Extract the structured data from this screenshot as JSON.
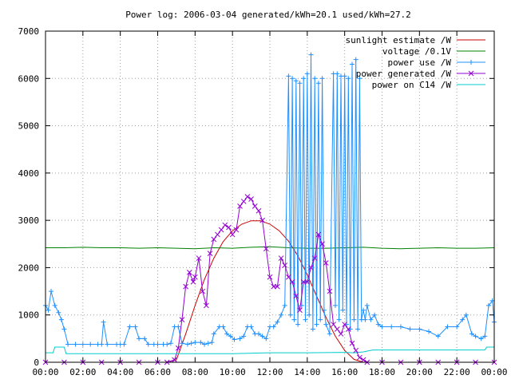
{
  "chart_data": {
    "type": "line",
    "title": "Power log: 2006-03-04 generated/kWh=20.1 used/kWh=27.2",
    "xlabel": "",
    "ylabel": "",
    "x_ticks": [
      "00:00",
      "02:00",
      "04:00",
      "06:00",
      "08:00",
      "10:00",
      "12:00",
      "14:00",
      "16:00",
      "18:00",
      "20:00",
      "22:00",
      "00:00"
    ],
    "x_unit": "hours",
    "xlim": [
      0,
      24
    ],
    "ylim": [
      0,
      7000
    ],
    "y_ticks": [
      0,
      1000,
      2000,
      3000,
      4000,
      5000,
      6000,
      7000
    ],
    "grid": true,
    "legend_position": "top-right",
    "series": [
      {
        "name": "sunlight estimate /W",
        "color": "#cc0000",
        "marker": "none",
        "points": [
          [
            6.5,
            0
          ],
          [
            7,
            50
          ],
          [
            7.5,
            600
          ],
          [
            8,
            1200
          ],
          [
            8.5,
            1750
          ],
          [
            9,
            2200
          ],
          [
            9.5,
            2550
          ],
          [
            10,
            2780
          ],
          [
            10.5,
            2920
          ],
          [
            11,
            2990
          ],
          [
            11.5,
            2990
          ],
          [
            12,
            2920
          ],
          [
            12.5,
            2780
          ],
          [
            13,
            2560
          ],
          [
            13.5,
            2250
          ],
          [
            14,
            1850
          ],
          [
            14.5,
            1400
          ],
          [
            15,
            950
          ],
          [
            15.5,
            550
          ],
          [
            16,
            250
          ],
          [
            16.5,
            60
          ],
          [
            17,
            0
          ]
        ]
      },
      {
        "name": "voltage /0.1V",
        "color": "#008000",
        "marker": "none",
        "points": [
          [
            0,
            2420
          ],
          [
            1,
            2420
          ],
          [
            2,
            2430
          ],
          [
            3,
            2420
          ],
          [
            4,
            2420
          ],
          [
            5,
            2410
          ],
          [
            6,
            2420
          ],
          [
            7,
            2410
          ],
          [
            8,
            2400
          ],
          [
            9,
            2420
          ],
          [
            10,
            2410
          ],
          [
            11,
            2430
          ],
          [
            12,
            2440
          ],
          [
            13,
            2420
          ],
          [
            14,
            2410
          ],
          [
            15,
            2410
          ],
          [
            16,
            2420
          ],
          [
            17,
            2430
          ],
          [
            18,
            2410
          ],
          [
            19,
            2400
          ],
          [
            20,
            2410
          ],
          [
            21,
            2420
          ],
          [
            22,
            2410
          ],
          [
            23,
            2410
          ],
          [
            24,
            2420
          ]
        ]
      },
      {
        "name": "power use /W",
        "color": "#1e90ff",
        "marker": "+",
        "points": [
          [
            0,
            1200
          ],
          [
            0.15,
            1100
          ],
          [
            0.3,
            1500
          ],
          [
            0.5,
            1200
          ],
          [
            0.7,
            1050
          ],
          [
            0.85,
            900
          ],
          [
            1,
            700
          ],
          [
            1.2,
            380
          ],
          [
            1.6,
            380
          ],
          [
            2,
            380
          ],
          [
            2.4,
            380
          ],
          [
            2.8,
            380
          ],
          [
            3,
            380
          ],
          [
            3.1,
            850
          ],
          [
            3.3,
            380
          ],
          [
            3.8,
            380
          ],
          [
            4,
            380
          ],
          [
            4.2,
            380
          ],
          [
            4.5,
            750
          ],
          [
            4.8,
            750
          ],
          [
            5,
            500
          ],
          [
            5.3,
            500
          ],
          [
            5.5,
            380
          ],
          [
            5.8,
            380
          ],
          [
            6,
            380
          ],
          [
            6.3,
            380
          ],
          [
            6.5,
            380
          ],
          [
            6.7,
            400
          ],
          [
            6.9,
            750
          ],
          [
            7.1,
            750
          ],
          [
            7.3,
            400
          ],
          [
            7.6,
            380
          ],
          [
            7.8,
            400
          ],
          [
            8,
            420
          ],
          [
            8.3,
            420
          ],
          [
            8.5,
            380
          ],
          [
            8.7,
            400
          ],
          [
            8.9,
            420
          ],
          [
            9,
            600
          ],
          [
            9.3,
            750
          ],
          [
            9.5,
            750
          ],
          [
            9.7,
            600
          ],
          [
            9.9,
            550
          ],
          [
            10.1,
            480
          ],
          [
            10.4,
            500
          ],
          [
            10.6,
            550
          ],
          [
            10.8,
            750
          ],
          [
            11,
            750
          ],
          [
            11.2,
            600
          ],
          [
            11.4,
            600
          ],
          [
            11.6,
            550
          ],
          [
            11.8,
            500
          ],
          [
            12,
            750
          ],
          [
            12.2,
            750
          ],
          [
            12.4,
            850
          ],
          [
            12.6,
            1000
          ],
          [
            12.8,
            1200
          ],
          [
            13,
            6050
          ],
          [
            13.1,
            1000
          ],
          [
            13.2,
            6000
          ],
          [
            13.3,
            900
          ],
          [
            13.4,
            5950
          ],
          [
            13.5,
            800
          ],
          [
            13.6,
            5900
          ],
          [
            13.7,
            1200
          ],
          [
            13.8,
            6000
          ],
          [
            13.9,
            900
          ],
          [
            14,
            6100
          ],
          [
            14.1,
            1000
          ],
          [
            14.2,
            6500
          ],
          [
            14.3,
            700
          ],
          [
            14.4,
            6000
          ],
          [
            14.5,
            800
          ],
          [
            14.6,
            5900
          ],
          [
            14.7,
            900
          ],
          [
            14.8,
            6000
          ],
          [
            14.9,
            1100
          ],
          [
            15,
            800
          ],
          [
            15.2,
            600
          ],
          [
            15.4,
            6100
          ],
          [
            15.5,
            1200
          ],
          [
            15.6,
            6100
          ],
          [
            15.7,
            900
          ],
          [
            15.8,
            6050
          ],
          [
            15.9,
            1100
          ],
          [
            16,
            6050
          ],
          [
            16.1,
            800
          ],
          [
            16.2,
            6000
          ],
          [
            16.3,
            700
          ],
          [
            16.4,
            6300
          ],
          [
            16.5,
            900
          ],
          [
            16.6,
            6400
          ],
          [
            16.7,
            700
          ],
          [
            16.8,
            6000
          ],
          [
            16.9,
            900
          ],
          [
            17,
            1100
          ],
          [
            17.1,
            900
          ],
          [
            17.2,
            1200
          ],
          [
            17.4,
            900
          ],
          [
            17.6,
            1000
          ],
          [
            17.8,
            800
          ],
          [
            18,
            750
          ],
          [
            18.5,
            750
          ],
          [
            19,
            750
          ],
          [
            19.5,
            700
          ],
          [
            20,
            700
          ],
          [
            20.5,
            650
          ],
          [
            21,
            550
          ],
          [
            21.5,
            750
          ],
          [
            22,
            750
          ],
          [
            22.3,
            900
          ],
          [
            22.5,
            1000
          ],
          [
            22.8,
            600
          ],
          [
            23,
            550
          ],
          [
            23.3,
            500
          ],
          [
            23.5,
            550
          ],
          [
            23.7,
            1200
          ],
          [
            23.9,
            1300
          ],
          [
            24,
            850
          ]
        ]
      },
      {
        "name": "power generated /W",
        "color": "#9400d3",
        "marker": "x",
        "points": [
          [
            0,
            0
          ],
          [
            1,
            0
          ],
          [
            2,
            0
          ],
          [
            3,
            0
          ],
          [
            4,
            0
          ],
          [
            5,
            0
          ],
          [
            6,
            0
          ],
          [
            6.5,
            0
          ],
          [
            6.9,
            50
          ],
          [
            7.1,
            300
          ],
          [
            7.3,
            900
          ],
          [
            7.5,
            1600
          ],
          [
            7.7,
            1900
          ],
          [
            7.9,
            1700
          ],
          [
            8,
            1800
          ],
          [
            8.2,
            2200
          ],
          [
            8.4,
            1500
          ],
          [
            8.6,
            1200
          ],
          [
            8.8,
            2300
          ],
          [
            9,
            2600
          ],
          [
            9.2,
            2700
          ],
          [
            9.4,
            2800
          ],
          [
            9.6,
            2900
          ],
          [
            9.8,
            2850
          ],
          [
            10,
            2700
          ],
          [
            10.2,
            2800
          ],
          [
            10.4,
            3300
          ],
          [
            10.6,
            3400
          ],
          [
            10.8,
            3500
          ],
          [
            11,
            3450
          ],
          [
            11.2,
            3300
          ],
          [
            11.4,
            3200
          ],
          [
            11.6,
            3000
          ],
          [
            11.8,
            2400
          ],
          [
            12,
            1800
          ],
          [
            12.2,
            1600
          ],
          [
            12.4,
            1600
          ],
          [
            12.6,
            2200
          ],
          [
            12.8,
            2050
          ],
          [
            13,
            1800
          ],
          [
            13.2,
            1700
          ],
          [
            13.4,
            1400
          ],
          [
            13.6,
            1100
          ],
          [
            13.8,
            1700
          ],
          [
            14,
            1700
          ],
          [
            14.2,
            2000
          ],
          [
            14.4,
            2200
          ],
          [
            14.6,
            2700
          ],
          [
            14.8,
            2500
          ],
          [
            15,
            2100
          ],
          [
            15.2,
            1500
          ],
          [
            15.4,
            800
          ],
          [
            15.6,
            700
          ],
          [
            15.8,
            600
          ],
          [
            16,
            800
          ],
          [
            16.2,
            700
          ],
          [
            16.4,
            400
          ],
          [
            16.6,
            250
          ],
          [
            16.8,
            100
          ],
          [
            17,
            50
          ],
          [
            17.2,
            0
          ],
          [
            18,
            0
          ],
          [
            19,
            0
          ],
          [
            20,
            0
          ],
          [
            21,
            0
          ],
          [
            22,
            0
          ],
          [
            23,
            0
          ],
          [
            24,
            0
          ]
        ]
      },
      {
        "name": "power on C14 /W",
        "color": "#00cccc",
        "marker": "none",
        "points": [
          [
            0,
            200
          ],
          [
            0.4,
            200
          ],
          [
            0.5,
            320
          ],
          [
            1,
            320
          ],
          [
            1.1,
            180
          ],
          [
            6,
            180
          ],
          [
            8,
            180
          ],
          [
            10,
            180
          ],
          [
            12,
            200
          ],
          [
            14,
            200
          ],
          [
            16,
            210
          ],
          [
            16.5,
            200
          ],
          [
            17,
            220
          ],
          [
            17.5,
            260
          ],
          [
            20,
            260
          ],
          [
            22,
            260
          ],
          [
            23.5,
            260
          ],
          [
            23.6,
            320
          ],
          [
            24,
            320
          ]
        ]
      }
    ]
  }
}
